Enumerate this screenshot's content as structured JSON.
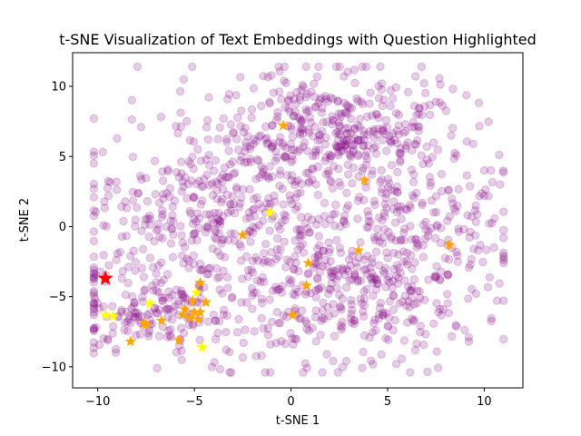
{
  "chart_data": {
    "type": "scatter",
    "title": "t-SNE Visualization of Text Embeddings with Question Highlighted",
    "xlabel": "t-SNE  1",
    "ylabel": "t-SNE  2",
    "xlim": [
      -11.3,
      12.0
    ],
    "ylim": [
      -11.5,
      12.4
    ],
    "xticks": [
      -10,
      -5,
      0,
      5,
      10
    ],
    "yticks": [
      -10,
      -5,
      0,
      5,
      10
    ],
    "grid": false,
    "legend": "none",
    "background_points": {
      "color": "#800080",
      "opacity": 0.2,
      "count": 1500,
      "x_range": [
        -10.2,
        11.0
      ],
      "y_range": [
        -10.4,
        11.4
      ]
    },
    "series": [
      {
        "marker": "star",
        "color": "#FFA500",
        "points": [
          [
            -0.4,
            7.2
          ],
          [
            3.8,
            3.3
          ],
          [
            -2.5,
            -0.6
          ],
          [
            3.5,
            -1.7
          ],
          [
            8.2,
            -1.3
          ],
          [
            0.9,
            -2.6
          ],
          [
            -4.7,
            -4.0
          ],
          [
            0.8,
            -4.2
          ],
          [
            -4.4,
            -5.4
          ],
          [
            -5.1,
            -5.3
          ],
          [
            -5.5,
            -5.9
          ],
          [
            -5.0,
            -6.1
          ],
          [
            -4.7,
            -6.1
          ],
          [
            -5.6,
            -6.3
          ],
          [
            -5.2,
            -6.5
          ],
          [
            -4.8,
            -6.6
          ],
          [
            0.1,
            -6.3
          ],
          [
            -6.7,
            -6.7
          ],
          [
            -7.6,
            -6.9
          ],
          [
            -7.5,
            -7.0
          ],
          [
            -8.3,
            -8.2
          ],
          [
            -5.8,
            -8.1
          ]
        ]
      },
      {
        "marker": "star",
        "color": "#FFFF00",
        "points": [
          [
            -1.1,
            1.0
          ],
          [
            -9.6,
            -6.3
          ],
          [
            -9.2,
            -6.4
          ],
          [
            -7.3,
            -5.5
          ],
          [
            -4.9,
            -4.7
          ],
          [
            -4.6,
            -8.6
          ]
        ]
      },
      {
        "marker": "star",
        "color": "#FF0000",
        "points": [
          [
            -9.6,
            -3.7
          ]
        ]
      }
    ]
  }
}
